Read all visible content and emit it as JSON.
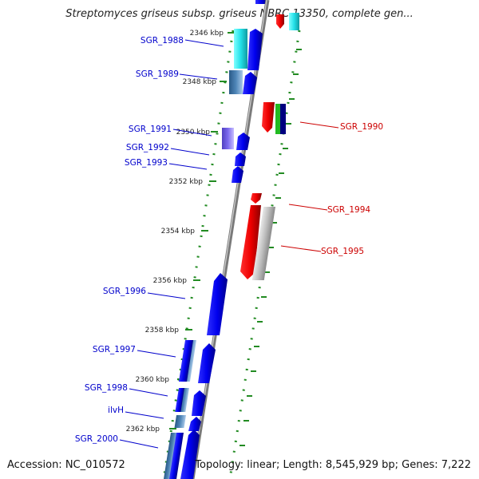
{
  "title": "Streptomyces griseus subsp. griseus NBRC 13350, complete gen...",
  "footer": {
    "accession": "Accession: NC_010572",
    "summary": "Topology: linear; Length: 8,545,929 bp; Genes: 7,222"
  },
  "kbp_ticks": [
    "2346 kbp",
    "2348 kbp",
    "2350 kbp",
    "2352 kbp",
    "2354 kbp",
    "2356 kbp",
    "2358 kbp",
    "2360 kbp",
    "2362 kbp"
  ],
  "genes": [
    {
      "label": "SGR_1988",
      "strand": "forward",
      "color": "#0000cc"
    },
    {
      "label": "SGR_1989",
      "strand": "forward",
      "color": "#0000cc"
    },
    {
      "label": "SGR_1990",
      "strand": "reverse",
      "color": "#cc0000"
    },
    {
      "label": "SGR_1991",
      "strand": "forward",
      "color": "#0000cc"
    },
    {
      "label": "SGR_1992",
      "strand": "forward",
      "color": "#0000cc"
    },
    {
      "label": "SGR_1993",
      "strand": "forward",
      "color": "#0000cc"
    },
    {
      "label": "SGR_1994",
      "strand": "reverse",
      "color": "#cc0000"
    },
    {
      "label": "SGR_1995",
      "strand": "reverse",
      "color": "#cc0000"
    },
    {
      "label": "SGR_1996",
      "strand": "forward",
      "color": "#0000cc"
    },
    {
      "label": "SGR_1997",
      "strand": "forward",
      "color": "#0000cc"
    },
    {
      "label": "SGR_1998",
      "strand": "forward",
      "color": "#0000cc"
    },
    {
      "label": "ilvH",
      "strand": "forward",
      "color": "#0000cc"
    },
    {
      "label": "SGR_2000",
      "strand": "forward",
      "color": "#0000cc"
    }
  ],
  "colors": {
    "backbone": "#888888",
    "tick_green": "#228B22",
    "forward_gene": "#0000ee",
    "reverse_gene": "#ee0000",
    "cyan_feature": "#22e0e8",
    "steel_feature": "#4f86b8",
    "violet_feature": "#7b68ee",
    "grey_feature": "#bdbdbd",
    "green_feature": "#22bb22",
    "navy_feature": "#000080"
  }
}
